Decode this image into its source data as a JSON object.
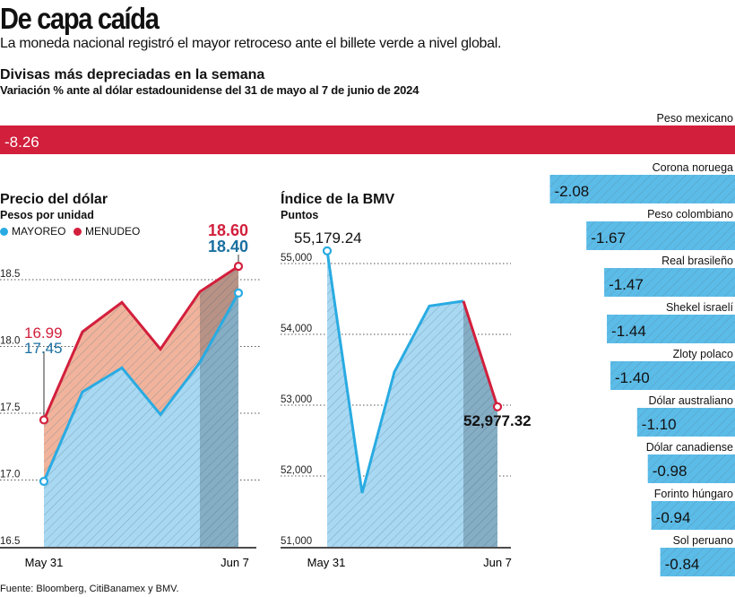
{
  "header": {
    "title": "De capa caída",
    "subtitle": "La moneda nacional registró el mayor retroceso ante el billete verde a nivel global."
  },
  "colors": {
    "red": "#d21f3c",
    "blue": "#29abe2",
    "dark_blue": "#1a6fa0",
    "blue_fill": "#a9d8f2",
    "red_fill": "#f1b39b"
  },
  "chart_data": [
    {
      "type": "bar",
      "orientation": "horizontal",
      "title": "Divisas más depreciadas en la semana",
      "subtitle": "Variación % ante al dólar estadounidense del 31 de mayo al 7 de junio de 2024",
      "categories": [
        "Peso mexicano",
        "Corona noruega",
        "Peso colombiano",
        "Real brasileño",
        "Shekel israelí",
        "Zloty polaco",
        "Dólar australiano",
        "Dólar canadiense",
        "Forinto húngaro",
        "Sol peruano"
      ],
      "values": [
        -8.26,
        -2.08,
        -1.67,
        -1.47,
        -1.44,
        -1.4,
        -1.1,
        -0.98,
        -0.94,
        -0.84
      ],
      "labels": [
        "-8.26",
        "-2.08",
        "-1.67",
        "-1.47",
        "-1.44",
        "-1.40",
        "-1.10",
        "-0.98",
        "-0.94",
        "-0.84"
      ],
      "highlight_color": "#d21f3c",
      "bar_color": "#5bbce8"
    },
    {
      "type": "area",
      "title": "Precio del dólar",
      "ylabel": "Pesos por unidad",
      "x_labels": [
        "May 31",
        "Jun 7"
      ],
      "ylim": [
        16.5,
        18.6
      ],
      "yticks": [
        "16.5",
        "17.0",
        "17.5",
        "18.0",
        "18.5"
      ],
      "ytick_values": [
        16.5,
        17.0,
        17.5,
        18.0,
        18.5
      ],
      "grid": true,
      "legend": "top-left",
      "series": [
        {
          "name": "MAYOREO",
          "color": "#29abe2",
          "values": [
            16.99,
            17.66,
            17.84,
            17.49,
            17.88,
            18.4
          ]
        },
        {
          "name": "MENUDEO",
          "color": "#d21f3c",
          "values": [
            17.45,
            18.11,
            18.33,
            17.98,
            18.41,
            18.6
          ]
        }
      ],
      "annotations": {
        "start_red": "16.99",
        "start_blue": "17.45",
        "end_red": "18.60",
        "end_blue": "18.40"
      }
    },
    {
      "type": "area",
      "title": "Índice de la BMV",
      "ylabel": "Puntos",
      "x_labels": [
        "May 31",
        "Jun 7"
      ],
      "ylim": [
        51000,
        55179.24
      ],
      "yticks": [
        "51,000",
        "52,000",
        "53,000",
        "54,000",
        "55,000"
      ],
      "ytick_values": [
        51000,
        52000,
        53000,
        54000,
        55000
      ],
      "grid": true,
      "series": [
        {
          "color": "#29abe2",
          "values": [
            55179.24,
            51760,
            53470,
            54400,
            54470,
            52977.32
          ]
        }
      ],
      "annotations": {
        "start": "55,179.24",
        "end": "52,977.32"
      }
    }
  ],
  "footer": {
    "source": "Fuente: Bloomberg, CitiBanamex y BMV."
  }
}
